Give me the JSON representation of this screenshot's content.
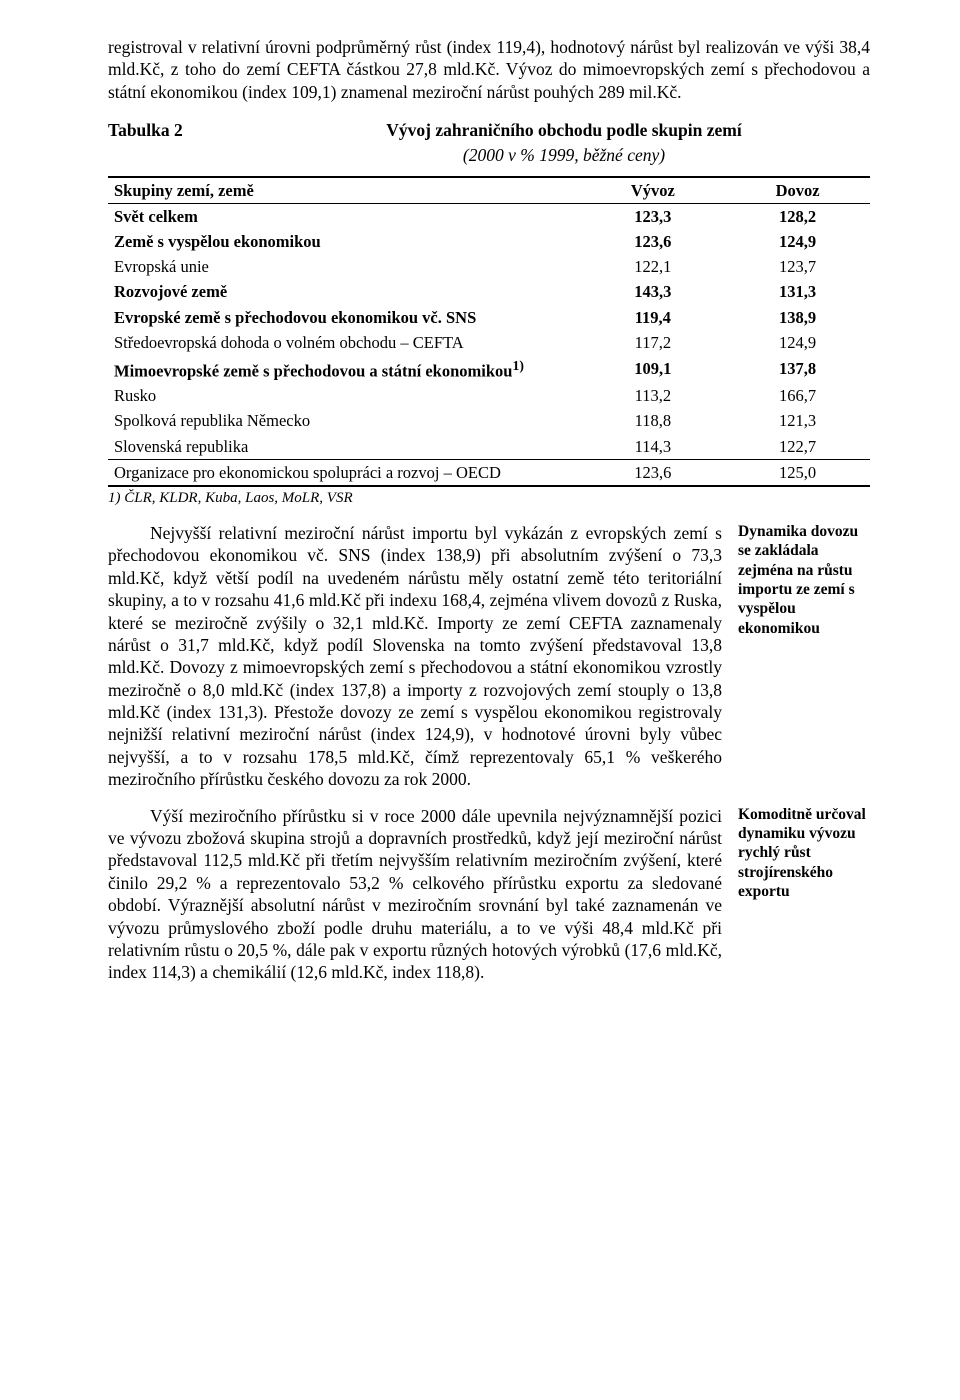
{
  "para_top": "registroval v relativní úrovni podprůměrný růst (index 119,4), hodnotový nárůst byl realizován ve výši 38,4 mld.Kč, z toho do zemí CEFTA částkou 27,8 mld.Kč. Vývoz do mimoevropských zemí s přechodovou a státní ekonomikou (index 109,1) znamenal meziroční nárůst pouhých 289 mil.Kč.",
  "table": {
    "label": "Tabulka 2",
    "title": "Vývoj zahraničního obchodu podle skupin zemí",
    "subtitle": "(2000 v % 1999, běžné ceny)",
    "headers": [
      "Skupiny zemí, země",
      "Vývoz",
      "Dovoz"
    ],
    "rows": [
      {
        "label": "Svět celkem",
        "v1": "123,3",
        "v2": "128,2",
        "bold": true,
        "section_top": true
      },
      {
        "label": "Země s vyspělou ekonomikou",
        "v1": "123,6",
        "v2": "124,9",
        "bold": true
      },
      {
        "label": "Evropská unie",
        "v1": "122,1",
        "v2": "123,7"
      },
      {
        "label": "Rozvojové země",
        "v1": "143,3",
        "v2": "131,3",
        "bold": true
      },
      {
        "label": "Evropské země s přechodovou ekonomikou vč. SNS",
        "v1": "119,4",
        "v2": "138,9",
        "bold": true
      },
      {
        "label": "Středoevropská dohoda o volném obchodu – CEFTA",
        "v1": "117,2",
        "v2": "124,9"
      },
      {
        "label": "Mimoevropské země s přechodovou a státní ekonomikou",
        "sup": "1)",
        "v1": "109,1",
        "v2": "137,8",
        "bold": true
      },
      {
        "label": "Rusko",
        "v1": "113,2",
        "v2": "166,7"
      },
      {
        "label": "Spolková republika Německo",
        "v1": "118,8",
        "v2": "121,3"
      },
      {
        "label": "Slovenská republika",
        "v1": "114,3",
        "v2": "122,7"
      },
      {
        "label": "Organizace pro ekonomickou spolupráci a rozvoj – OECD",
        "v1": "123,6",
        "v2": "125,0",
        "sep": true,
        "last": true
      }
    ],
    "footnote": "1) ČLR, KLDR, Kuba, Laos, MoLR, VSR"
  },
  "block1": {
    "text": "Nejvyšší relativní meziroční nárůst importu byl vykázán z evropských zemí s přechodovou ekonomikou vč. SNS (index 138,9) při absolutním zvýšení o 73,3 mld.Kč, když větší podíl na uvedeném nárůstu měly ostatní země této teritoriální skupiny, a to v rozsahu 41,6 mld.Kč při indexu 168,4, zejména vlivem dovozů z Ruska, které se meziročně zvýšily o 32,1 mld.Kč. Importy ze zemí CEFTA zaznamenaly nárůst o 31,7 mld.Kč, když podíl Slovenska na tomto zvýšení představoval 13,8 mld.Kč. Dovozy z mimoevropských zemí s přechodovou a státní ekonomikou vzrostly meziročně o 8,0 mld.Kč (index 137,8) a importy z rozvojových zemí stouply o 13,8 mld.Kč (index 131,3). Přestože dovozy ze zemí s vyspělou ekonomikou registrovaly nejnižší relativní meziroční nárůst (index 124,9), v hodnotové úrovni byly vůbec nejvyšší, a to v rozsahu 178,5 mld.Kč, čímž reprezentovaly 65,1 % veškerého meziročního přírůstku českého dovozu za rok 2000.",
    "sidenote": "Dynamika dovozu se zakládala zejména na růstu importu ze zemí s vyspělou ekonomikou"
  },
  "block2": {
    "text": "Výší meziročního přírůstku si v roce 2000 dále upevnila nejvýznamnější pozici ve vývozu zbožová skupina strojů a dopravních prostředků, když její meziroční nárůst představoval 112,5 mld.Kč při třetím nejvyšším relativním meziročním zvýšení, které činilo 29,2 % a reprezentovalo 53,2 % celkového přírůstku exportu za sledované období. Výraznější absolutní nárůst v meziročním srovnání byl také zaznamenán ve vývozu průmyslového zboží podle druhu materiálu, a to ve výši 48,4 mld.Kč při relativním růstu o 20,5 %, dále pak v exportu různých hotových výrobků (17,6 mld.Kč, index 114,3) a chemikálií (12,6 mld.Kč, index 118,8).",
    "sidenote": "Komoditně určoval dynamiku vývozu rychlý růst strojírenského exportu"
  }
}
